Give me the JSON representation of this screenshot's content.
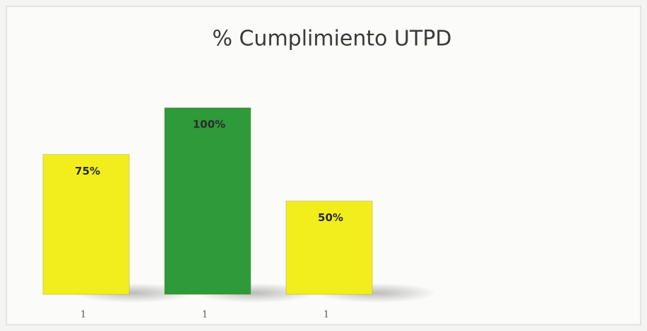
{
  "chart_data": {
    "type": "bar",
    "title": "% Cumplimiento UTPD",
    "categories": [
      "1",
      "1",
      "1"
    ],
    "values": [
      75,
      100,
      50
    ],
    "value_labels": [
      "75%",
      "100%",
      "50%"
    ],
    "colors": [
      "#f2ee1e",
      "#2e9a3a",
      "#f2ee1e"
    ],
    "ylim": [
      0,
      100
    ]
  }
}
